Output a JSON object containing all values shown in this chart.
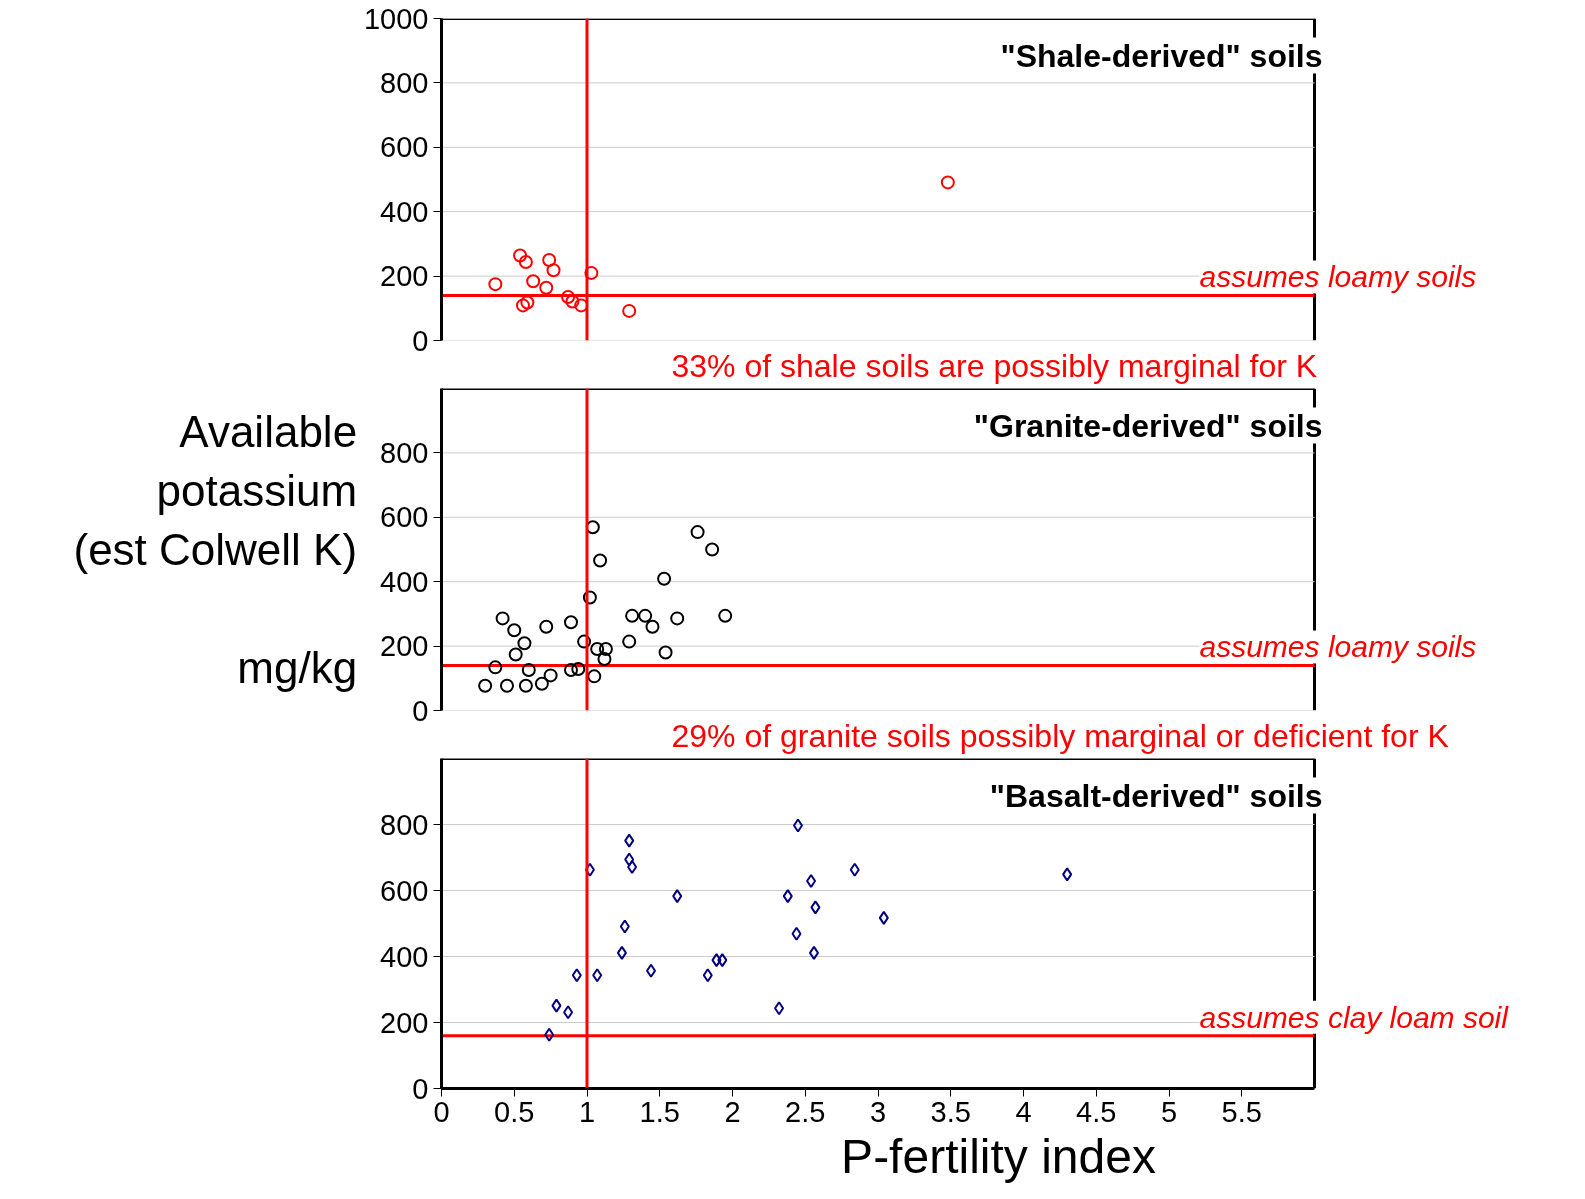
{
  "chart_data": [
    {
      "type": "scatter",
      "title": "\"Shale-derived\" soils",
      "marker": "circle",
      "grid": "y",
      "tick_labels": "y",
      "xlim": [
        0,
        6
      ],
      "xticks": [
        0,
        0.5,
        1,
        1.5,
        2,
        2.5,
        3,
        3.5,
        4,
        4.5,
        5,
        5.5
      ],
      "ylim": [
        0,
        1000
      ],
      "yticks": [
        0,
        200,
        400,
        600,
        800,
        1000
      ],
      "series": [
        {
          "color": "#ff0000",
          "x": [
            0.37,
            0.54,
            0.58,
            0.63,
            0.74,
            0.77,
            0.72,
            0.56,
            0.59,
            0.87,
            0.9,
            0.96,
            1.03,
            1.29,
            3.48
          ],
          "values": [
            175,
            264,
            244,
            184,
            250,
            218,
            164,
            109,
            118,
            135,
            121,
            109,
            210,
            92,
            491
          ]
        }
      ],
      "ref_lines": [
        {
          "axis": "x",
          "value": 1,
          "color": "#ff0000"
        },
        {
          "axis": "y",
          "value": 140,
          "label": "assumes loamy soils",
          "color": "#ff0000"
        }
      ],
      "annotations": [
        "33% of shale soils are possibly marginal for K"
      ]
    },
    {
      "type": "scatter",
      "title": "\"Granite-derived\" soils",
      "marker": "circle",
      "grid": "y",
      "tick_labels": "y",
      "ylabel": "Available\npotassium\n(est Colwell K)\n\nmg/kg",
      "xlim": [
        0,
        6
      ],
      "xticks": [
        0,
        0.5,
        1,
        1.5,
        2,
        2.5,
        3,
        3.5,
        4,
        4.5,
        5,
        5.5
      ],
      "ylim": [
        0,
        1000
      ],
      "yticks": [
        0,
        200,
        400,
        600,
        800
      ],
      "series": [
        {
          "color": "#000000",
          "x": [
            0.3,
            0.45,
            0.58,
            0.69,
            0.75,
            0.37,
            0.6,
            0.51,
            0.57,
            0.5,
            0.42,
            0.72,
            0.89,
            0.89,
            0.94,
            0.98,
            1.05,
            1.07,
            1.12,
            1.13,
            1.02,
            1.04,
            1.09,
            1.29,
            1.31,
            1.4,
            1.45,
            1.54,
            1.53,
            1.62,
            1.76,
            1.86,
            1.95
          ],
          "values": [
            77,
            77,
            77,
            83,
            109,
            134,
            126,
            174,
            209,
            249,
            286,
            260,
            274,
            126,
            129,
            214,
            106,
            191,
            160,
            191,
            351,
            569,
            466,
            214,
            294,
            294,
            260,
            180,
            409,
            286,
            554,
            500,
            294
          ]
        }
      ],
      "ref_lines": [
        {
          "axis": "x",
          "value": 1,
          "color": "#ff0000"
        },
        {
          "axis": "y",
          "value": 140,
          "label": "assumes loamy soils",
          "color": "#ff0000"
        }
      ],
      "annotations": [
        "29% of granite soils possibly marginal or deficient for K"
      ]
    },
    {
      "type": "scatter",
      "title": "\"Basalt-derived\" soils",
      "marker": "diamond",
      "grid": "y",
      "xlabel": "P-fertility index",
      "xlim": [
        0,
        6
      ],
      "xticks": [
        0,
        0.5,
        1,
        1.5,
        2,
        2.5,
        3,
        3.5,
        4,
        4.5,
        5,
        5.5
      ],
      "ylim": [
        0,
        1000
      ],
      "yticks": [
        0,
        200,
        400,
        600,
        800
      ],
      "series": [
        {
          "color": "#000080",
          "x": [
            0.74,
            0.79,
            0.87,
            0.93,
            1.02,
            1.07,
            1.24,
            1.26,
            1.29,
            1.29,
            1.31,
            1.44,
            1.62,
            1.83,
            1.89,
            1.93,
            2.32,
            2.38,
            2.44,
            2.45,
            2.54,
            2.57,
            2.56,
            2.84,
            3.04,
            4.3
          ],
          "values": [
            163,
            251,
            231,
            343,
            663,
            343,
            411,
            491,
            751,
            694,
            671,
            357,
            583,
            343,
            389,
            389,
            243,
            583,
            469,
            797,
            629,
            549,
            411,
            663,
            517,
            649
          ]
        }
      ],
      "ref_lines": [
        {
          "axis": "x",
          "value": 1,
          "color": "#ff0000"
        },
        {
          "axis": "y",
          "value": 160,
          "label": "assumes clay loam soil",
          "color": "#ff0000"
        }
      ]
    }
  ]
}
